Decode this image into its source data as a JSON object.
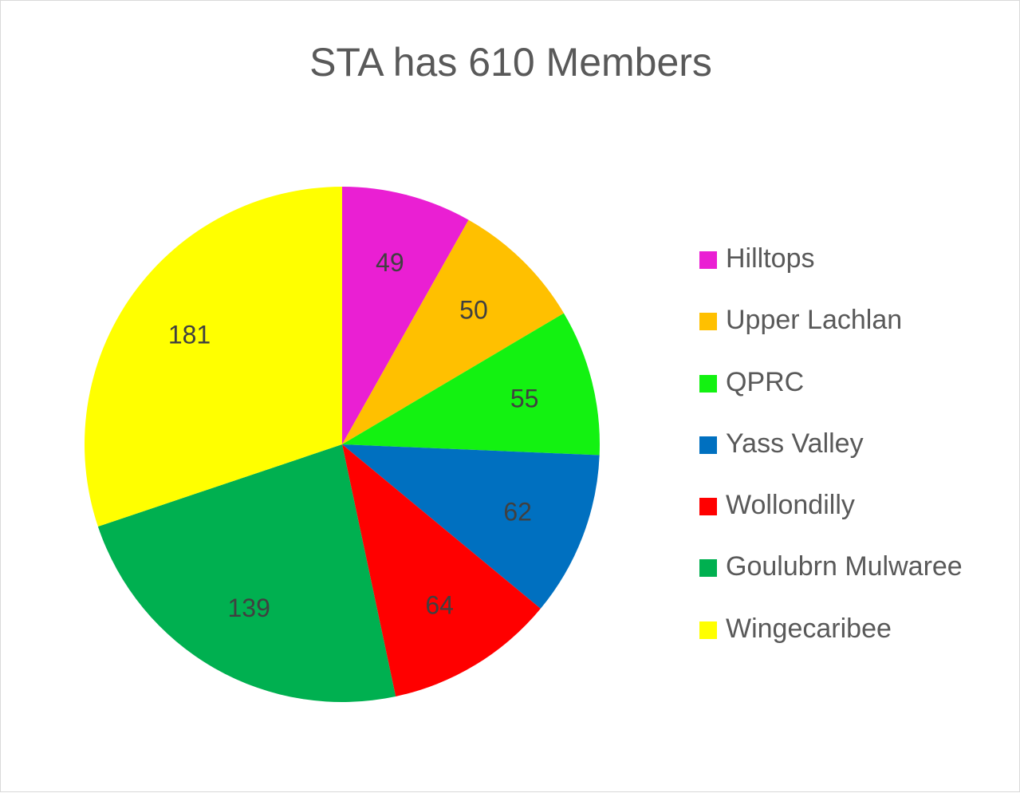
{
  "chart_data": {
    "type": "pie",
    "title": "STA has 610 Members",
    "categories": [
      "Hilltops",
      "Upper Lachlan",
      "QPRC",
      "Yass Valley",
      "Wollondilly",
      "Goulubrn Mulwaree",
      "Wingecaribee"
    ],
    "values": [
      49,
      50,
      55,
      62,
      64,
      139,
      181
    ],
    "colors": [
      "#ea1fd3",
      "#ffc000",
      "#13f211",
      "#0070c0",
      "#ff0000",
      "#00b050",
      "#ffff00"
    ],
    "data_labels": [
      "49",
      "50",
      "55",
      "62",
      "64",
      "139",
      "181"
    ],
    "legend_position": "right",
    "start_angle": "12 o'clock",
    "direction": "clockwise"
  }
}
